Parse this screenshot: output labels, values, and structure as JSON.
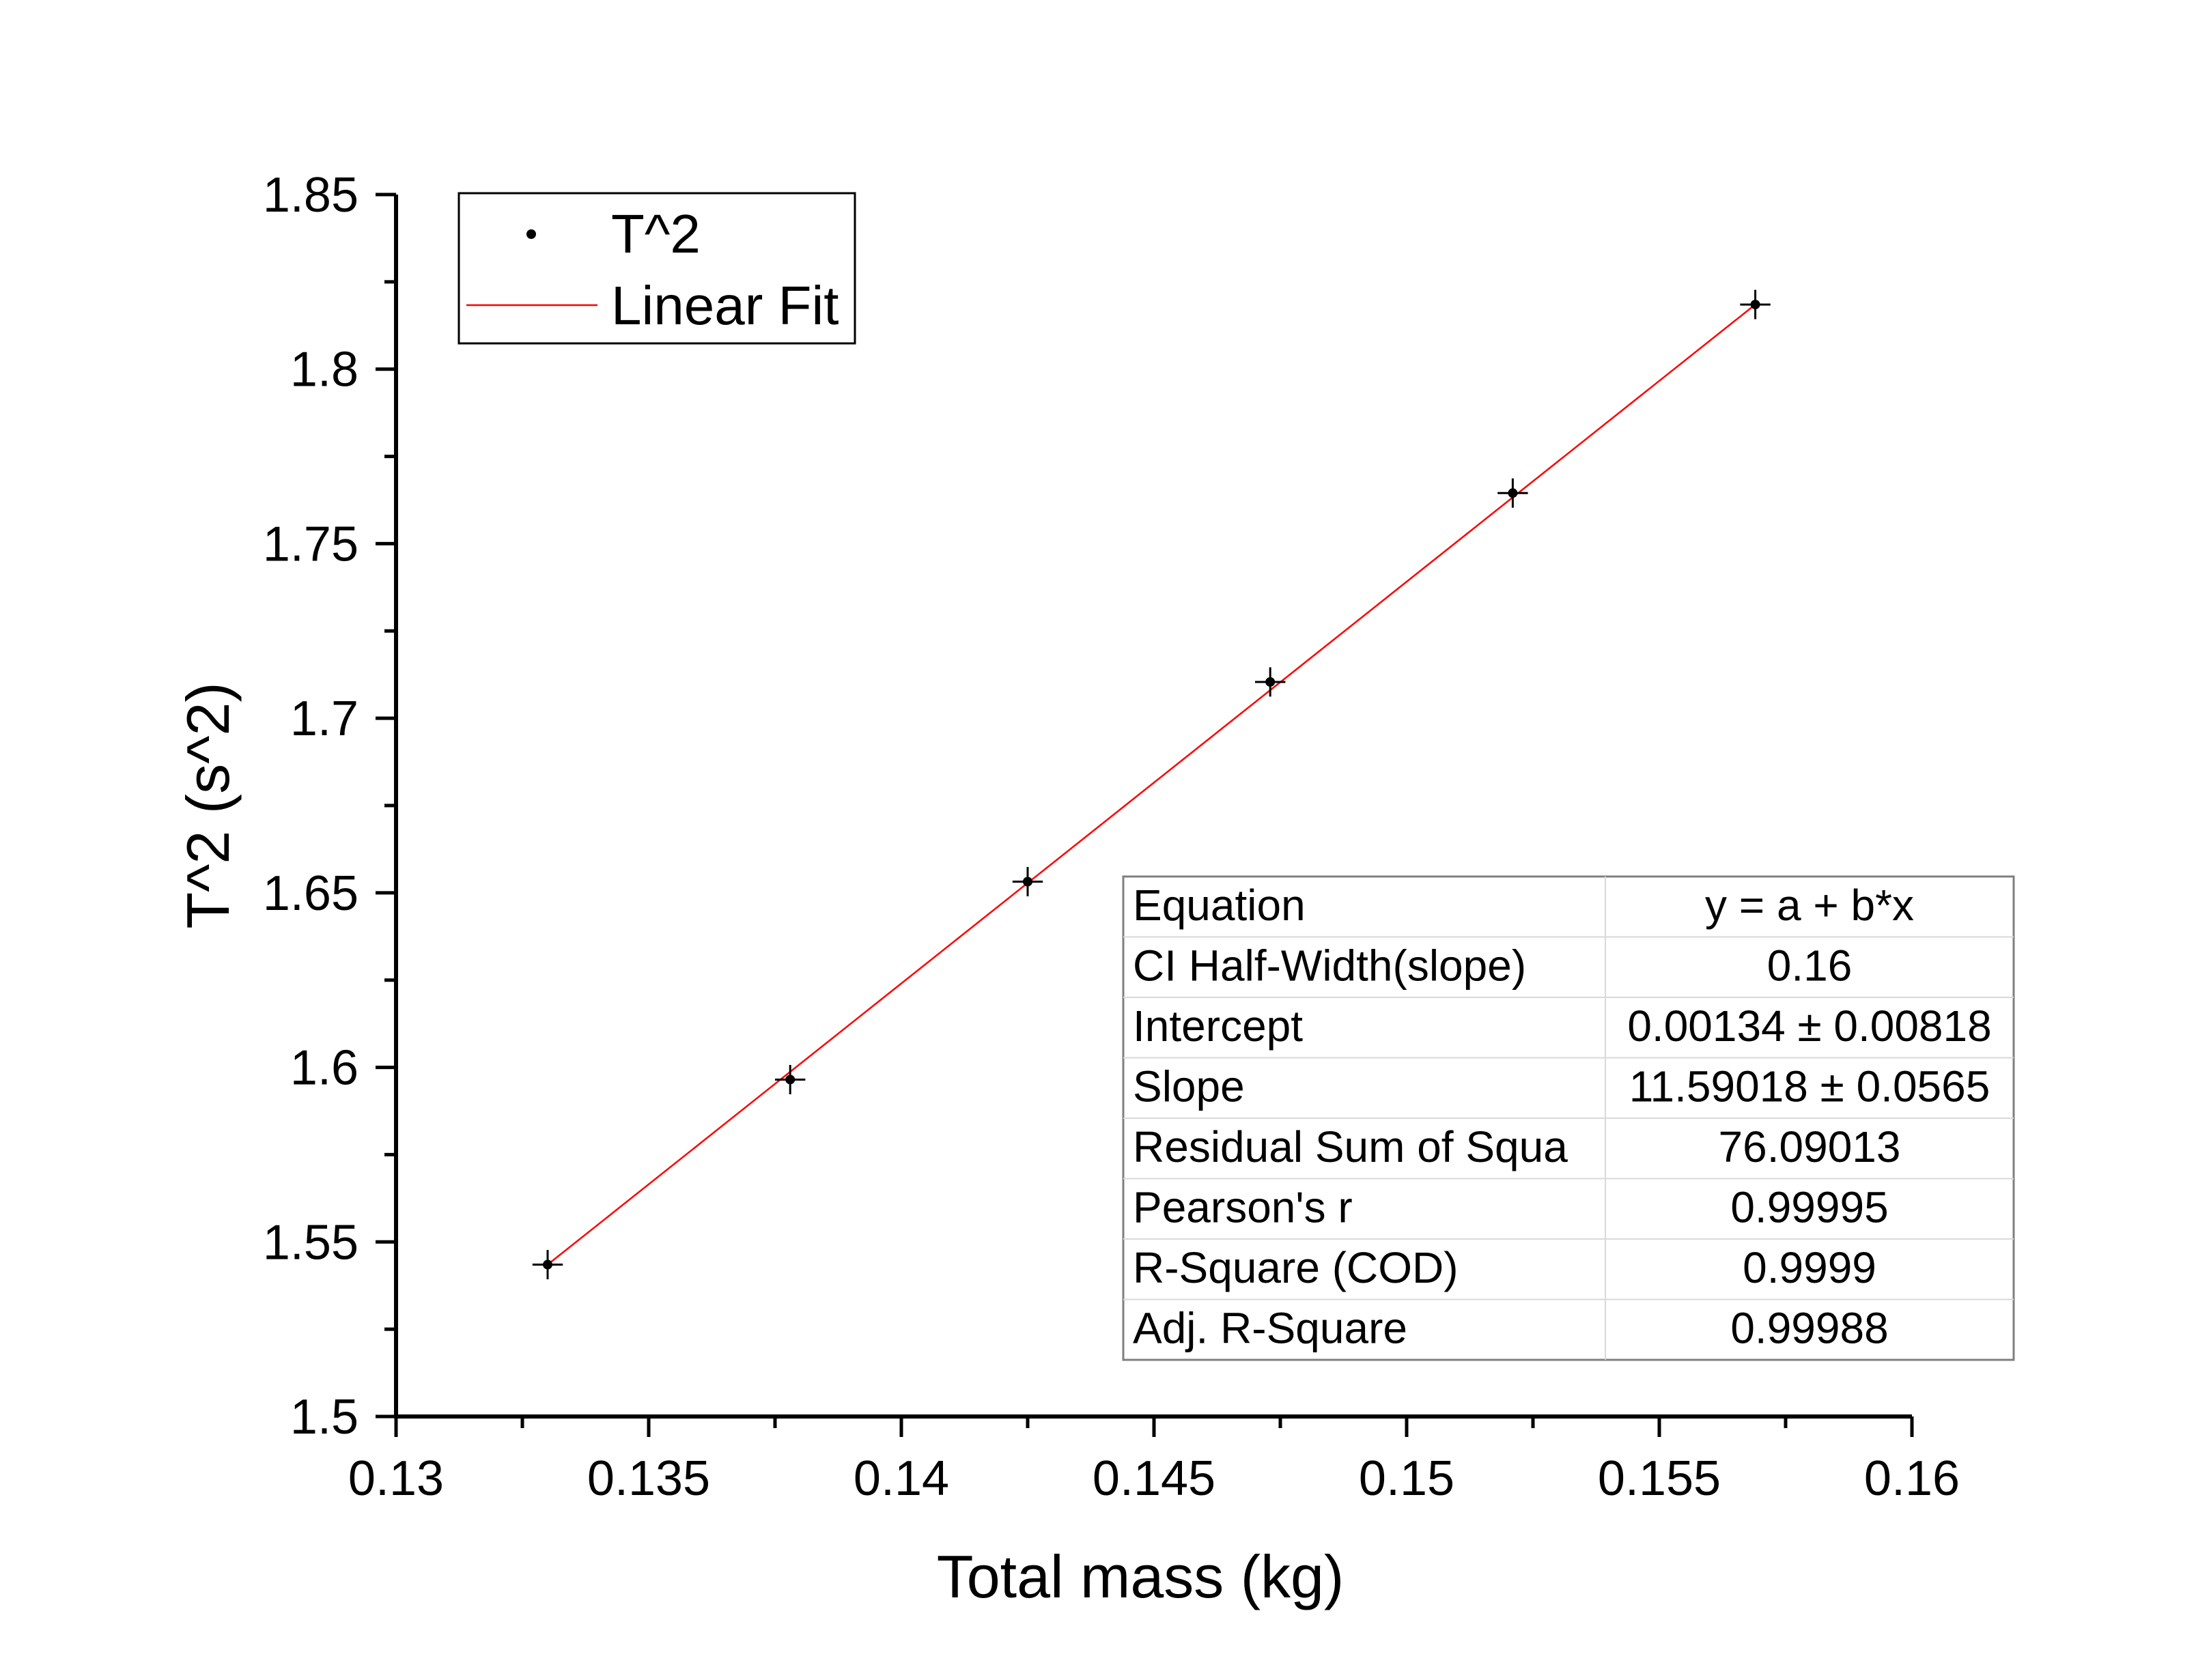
{
  "chart_data": {
    "type": "scatter",
    "xlabel": "Total mass (kg)",
    "ylabel": "T^2 (s^2)",
    "xlim": [
      0.13,
      0.16
    ],
    "ylim": [
      1.5,
      1.85
    ],
    "x_ticks": [
      "0.13",
      "0.135",
      "0.14",
      "0.145",
      "0.15",
      "0.155",
      "0.16"
    ],
    "y_ticks": [
      "1.5",
      "1.55",
      "1.6",
      "1.65",
      "1.7",
      "1.75",
      "1.8",
      "1.85"
    ],
    "grid": false,
    "legend": {
      "position": "top-left",
      "entries": [
        "T^2",
        "Linear Fit"
      ]
    },
    "series": [
      {
        "name": "T^2",
        "type": "scatter",
        "color": "#000000",
        "x": [
          0.133,
          0.1378,
          0.1425,
          0.1473,
          0.1521,
          0.1569
        ],
        "y": [
          1.5435,
          1.5965,
          1.6532,
          1.7104,
          1.7645,
          1.8185
        ],
        "x_err": [
          0.0003,
          0.0003,
          0.0003,
          0.0003,
          0.0003,
          0.0003
        ],
        "y_err": [
          0.0042,
          0.0042,
          0.0042,
          0.0042,
          0.0042,
          0.0042
        ]
      },
      {
        "name": "Linear Fit",
        "type": "line",
        "color": "#ff0000",
        "x": [
          0.133,
          0.1569
        ],
        "y": [
          1.5435,
          1.8185
        ]
      }
    ],
    "fit_table": {
      "rows": [
        [
          "Equation",
          "y = a + b*x"
        ],
        [
          "CI Half-Width(slope)",
          "0.16"
        ],
        [
          "Intercept",
          "0.00134 ± 0.00818"
        ],
        [
          "Slope",
          "11.59018 ± 0.0565"
        ],
        [
          "Residual Sum of Squa",
          "76.09013"
        ],
        [
          "Pearson's r",
          "0.99995"
        ],
        [
          "R-Square (COD)",
          "0.9999"
        ],
        [
          "Adj. R-Square",
          "0.99988"
        ]
      ]
    }
  }
}
